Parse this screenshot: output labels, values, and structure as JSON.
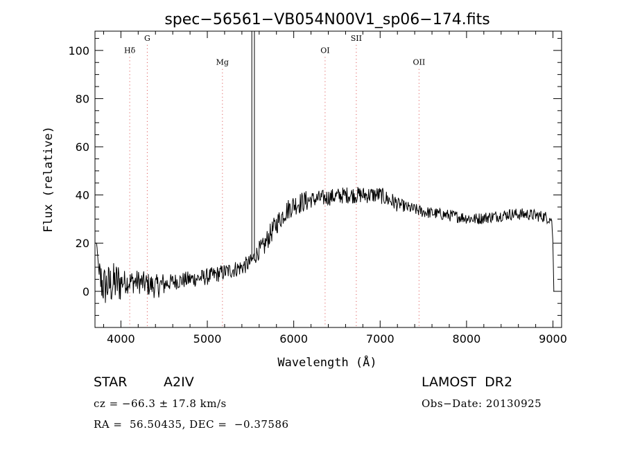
{
  "chart_data": {
    "type": "line",
    "title": "spec−56561−VB054N00V1_sp06−174.fits",
    "xlabel": "Wavelength (Å)",
    "ylabel": "Flux (relative)",
    "xlim": [
      3700,
      9100
    ],
    "ylim": [
      -15,
      108
    ],
    "x_ticks": [
      4000,
      5000,
      6000,
      7000,
      8000,
      9000
    ],
    "x_tick_labels": [
      "4000",
      "5000",
      "6000",
      "7000",
      "8000",
      "9000"
    ],
    "y_ticks": [
      0,
      20,
      40,
      60,
      80,
      100
    ],
    "y_tick_labels": [
      "0",
      "20",
      "40",
      "60",
      "80",
      "100"
    ],
    "line_markers": [
      {
        "label": "Hδ",
        "x": 4102,
        "label_y": 99
      },
      {
        "label": "G",
        "x": 4305,
        "label_y": 104
      },
      {
        "label": "Mg",
        "x": 5175,
        "label_y": 94
      },
      {
        "label": "OI",
        "x": 6363,
        "label_y": 99
      },
      {
        "label": "SII",
        "x": 6724,
        "label_y": 104
      },
      {
        "label": "OII",
        "x": 7450,
        "label_y": 94
      }
    ],
    "spectrum_anchors": {
      "x": [
        3700,
        3720,
        3750,
        3800,
        3900,
        4000,
        4200,
        4400,
        4600,
        4800,
        5000,
        5200,
        5400,
        5500,
        5540,
        5580,
        5650,
        5700,
        5800,
        5900,
        6000,
        6200,
        6400,
        6600,
        6800,
        7000,
        7100,
        7300,
        7500,
        7700,
        7900,
        8100,
        8300,
        8500,
        8700,
        8900,
        8985,
        9000,
        9010
      ],
      "y": [
        20,
        20,
        6,
        2,
        3,
        4,
        4,
        2,
        4,
        5,
        6,
        8,
        10,
        12,
        14,
        16,
        18,
        22,
        28,
        33,
        36,
        38,
        39,
        40,
        40,
        40,
        38,
        35,
        33,
        32,
        31,
        30,
        31,
        32,
        32,
        31,
        30,
        20,
        0
      ]
    },
    "spike": {
      "x": [
        5515,
        5545
      ],
      "y": 108
    },
    "grid": false,
    "legend": "none"
  },
  "info": {
    "object_class": "STAR",
    "subclass": "A2IV",
    "survey": "LAMOST  DR2",
    "cz": "cz = −66.3 ± 17.8 km/s",
    "obs_date": "Obs−Date: 20130925",
    "coords": "RA =  56.50435, DEC =  −0.37586"
  }
}
